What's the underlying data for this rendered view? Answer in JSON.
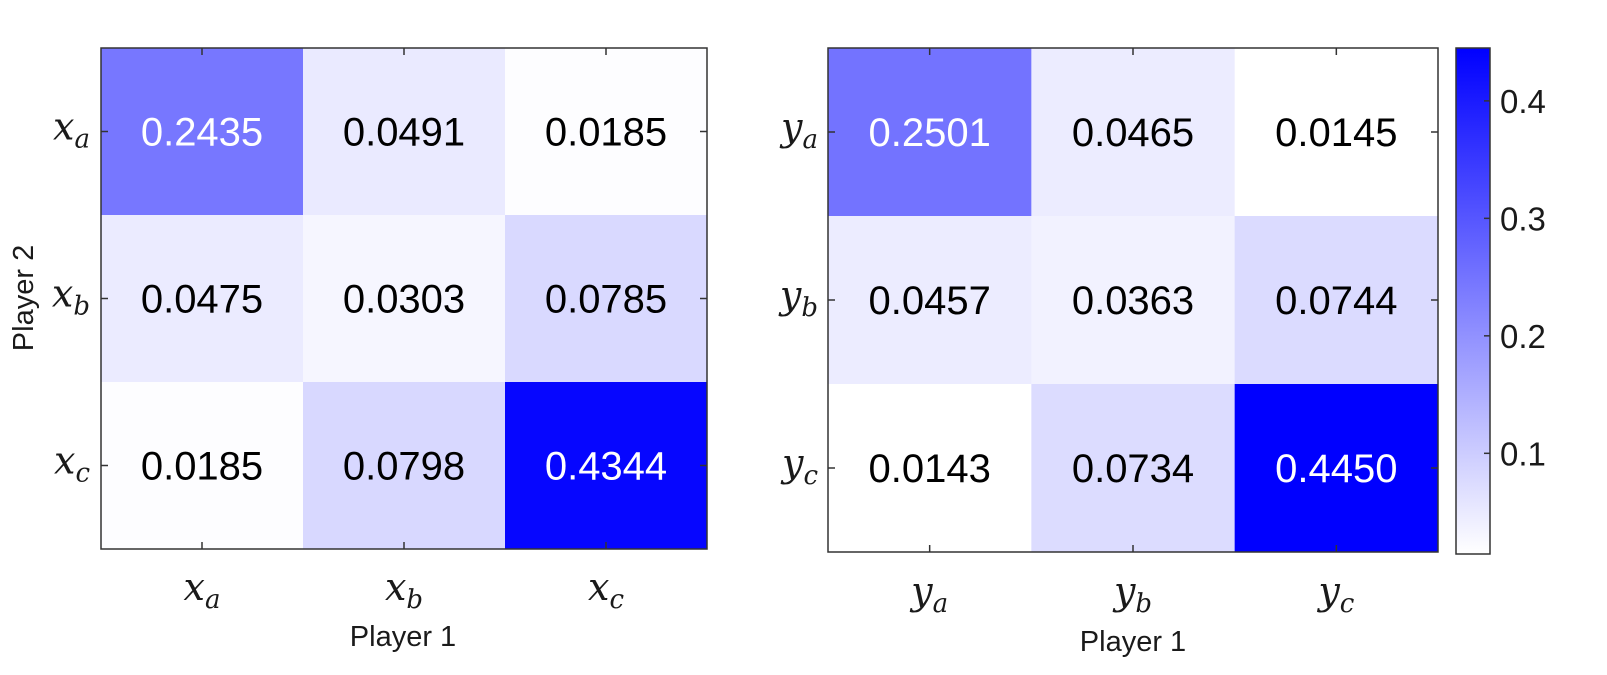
{
  "chart_data": [
    {
      "type": "heatmap",
      "xlabel": "Player 1",
      "ylabel": "Player 2",
      "x_ticks": [
        {
          "base": "x",
          "sub": "a"
        },
        {
          "base": "x",
          "sub": "b"
        },
        {
          "base": "x",
          "sub": "c"
        }
      ],
      "y_ticks": [
        {
          "base": "x",
          "sub": "a"
        },
        {
          "base": "x",
          "sub": "b"
        },
        {
          "base": "x",
          "sub": "c"
        }
      ],
      "values": [
        [
          0.2435,
          0.0491,
          0.0185
        ],
        [
          0.0475,
          0.0303,
          0.0785
        ],
        [
          0.0185,
          0.0798,
          0.4344
        ]
      ],
      "labels": [
        [
          "0.2435",
          "0.0491",
          "0.0185"
        ],
        [
          "0.0475",
          "0.0303",
          "0.0785"
        ],
        [
          "0.0185",
          "0.0798",
          "0.4344"
        ]
      ]
    },
    {
      "type": "heatmap",
      "xlabel": "Player 1",
      "ylabel": "",
      "x_ticks": [
        {
          "base": "y",
          "sub": "a"
        },
        {
          "base": "y",
          "sub": "b"
        },
        {
          "base": "y",
          "sub": "c"
        }
      ],
      "y_ticks": [
        {
          "base": "y",
          "sub": "a"
        },
        {
          "base": "y",
          "sub": "b"
        },
        {
          "base": "y",
          "sub": "c"
        }
      ],
      "values": [
        [
          0.2501,
          0.0465,
          0.0145
        ],
        [
          0.0457,
          0.0363,
          0.0744
        ],
        [
          0.0143,
          0.0734,
          0.445
        ]
      ],
      "labels": [
        [
          "0.2501",
          "0.0465",
          "0.0145"
        ],
        [
          "0.0457",
          "0.0363",
          "0.0744"
        ],
        [
          "0.0143",
          "0.0734",
          "0.4450"
        ]
      ]
    }
  ],
  "colorbar": {
    "range": [
      0.0143,
      0.445
    ],
    "ticks": [
      0.1,
      0.2,
      0.3,
      0.4
    ],
    "tick_labels": [
      "0.1",
      "0.2",
      "0.3",
      "0.4"
    ],
    "color_low": "#ffffff",
    "color_high": "#0000ff"
  },
  "colors": {
    "text_dark": "#000000",
    "text_light": "#ffffff",
    "axis": "#333333"
  }
}
